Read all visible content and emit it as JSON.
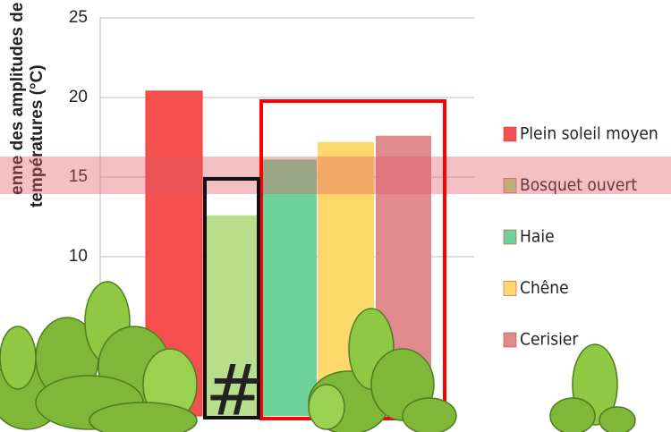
{
  "chart_data": {
    "type": "bar",
    "y_label_lines": [
      "enne des amplitudes de",
      "températures (°C)"
    ],
    "categories": [
      "Plein soleil moyen",
      "Bosquet ouvert",
      "Haie",
      "Chêne",
      "Cerisier"
    ],
    "values": [
      20.4,
      12.6,
      16.1,
      17.2,
      17.6
    ],
    "colors": [
      "#f55050",
      "#b8de8c",
      "#6dd39a",
      "#fdd86a",
      "#e08a8e"
    ],
    "ylim": [
      0,
      25
    ],
    "yticks": [
      10,
      15,
      20,
      25
    ],
    "grid": true,
    "annotation": "#"
  }
}
